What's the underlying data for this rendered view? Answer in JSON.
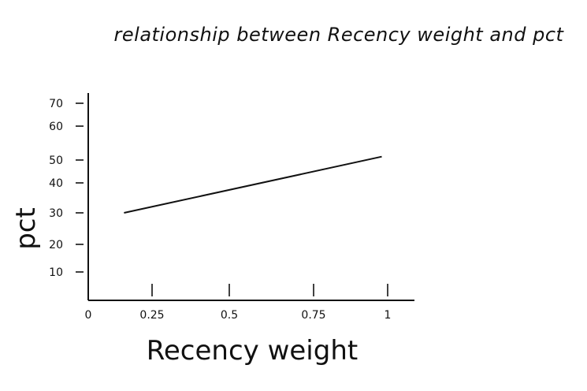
{
  "chart_data": {
    "type": "line",
    "title": "relationship between Recency weight and pct",
    "xlabel": "Recency weight",
    "ylabel": "pct",
    "x_ticks": [
      {
        "value": 0,
        "label": "0"
      },
      {
        "value": 0.25,
        "label": "0.25"
      },
      {
        "value": 0.5,
        "label": "0.5"
      },
      {
        "value": 0.75,
        "label": "0.75"
      },
      {
        "value": 1,
        "label": "1"
      }
    ],
    "y_ticks": [
      {
        "value": 10,
        "label": "10"
      },
      {
        "value": 20,
        "label": "20"
      },
      {
        "value": 30,
        "label": "30"
      },
      {
        "value": 40,
        "label": "40"
      },
      {
        "value": 50,
        "label": "50"
      },
      {
        "value": 60,
        "label": "60"
      },
      {
        "value": 70,
        "label": "70"
      }
    ],
    "series": [
      {
        "x": [
          0.14,
          0.98
        ],
        "y": [
          30,
          51
        ]
      }
    ],
    "color": "#111111",
    "grid": false
  }
}
